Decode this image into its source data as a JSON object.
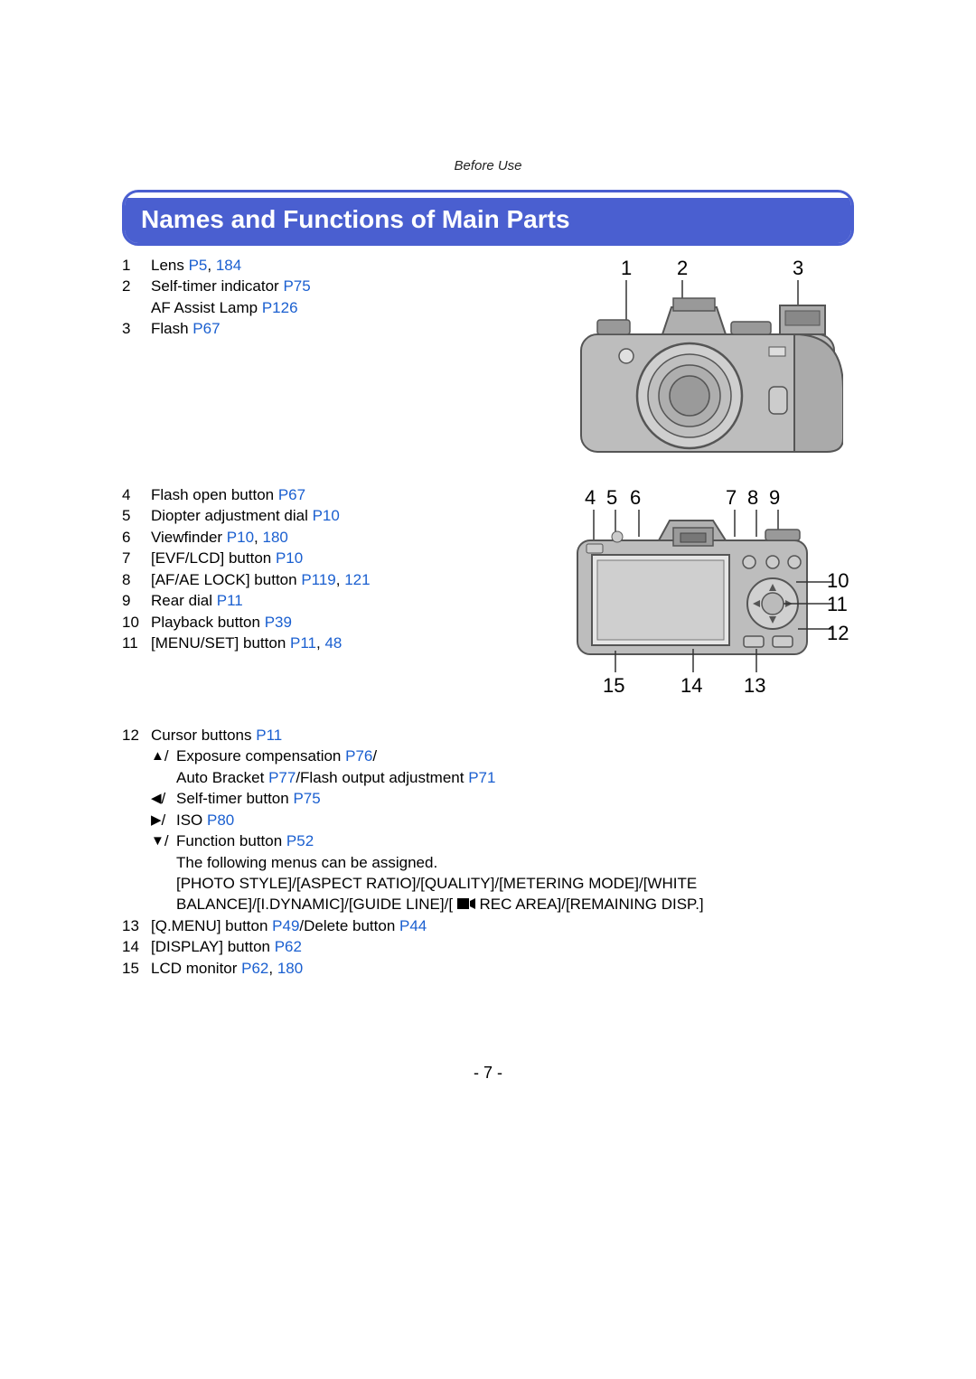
{
  "header": {
    "section": "Before Use"
  },
  "title": "Names and Functions of Main Parts",
  "colors": {
    "link": "#1a5fd0",
    "title_bg": "#4a5fd0",
    "title_fg": "#ffffff",
    "text": "#000000",
    "diagram_stroke": "#555555",
    "diagram_fill": "#b8b8b8"
  },
  "block1": {
    "items": [
      {
        "n": "1",
        "label": "Lens ",
        "refs": [
          "P5",
          ", ",
          "184"
        ]
      },
      {
        "n": "2",
        "label": "Self-timer indicator ",
        "refs": [
          "P75"
        ],
        "sub": {
          "label": "AF Assist Lamp ",
          "refs": [
            "P126"
          ]
        }
      },
      {
        "n": "3",
        "label": "Flash ",
        "refs": [
          "P67"
        ]
      }
    ]
  },
  "block2": {
    "items": [
      {
        "n": "4",
        "label": "Flash open button ",
        "refs": [
          "P67"
        ]
      },
      {
        "n": "5",
        "label": "Diopter adjustment dial ",
        "refs": [
          "P10"
        ]
      },
      {
        "n": "6",
        "label": "Viewfinder ",
        "refs": [
          "P10",
          ", ",
          "180"
        ]
      },
      {
        "n": "7",
        "label": "[EVF/LCD] button ",
        "refs": [
          "P10"
        ]
      },
      {
        "n": "8",
        "label": "[AF/AE LOCK] button ",
        "refs": [
          "P119",
          ", ",
          "121"
        ]
      },
      {
        "n": "9",
        "label": "Rear dial ",
        "refs": [
          "P11"
        ]
      },
      {
        "n": "10",
        "label": "Playback button ",
        "refs": [
          "P39"
        ]
      },
      {
        "n": "11",
        "label": "[MENU/SET] button ",
        "refs": [
          "P11",
          ", ",
          "48"
        ]
      }
    ]
  },
  "block3": {
    "n": "12",
    "label": "Cursor buttons ",
    "refs": [
      "P11"
    ],
    "subs": [
      {
        "icon": "up",
        "parts": [
          "Exposure compensation ",
          {
            "link": "P76"
          },
          "/",
          "\nAuto Bracket ",
          {
            "link": "P77"
          },
          "/Flash output adjustment ",
          {
            "link": "P71"
          }
        ]
      },
      {
        "icon": "left",
        "parts": [
          "Self-timer button ",
          {
            "link": "P75"
          }
        ]
      },
      {
        "icon": "right",
        "parts": [
          "ISO ",
          {
            "link": "P80"
          }
        ]
      },
      {
        "icon": "down",
        "parts": [
          "Function button ",
          {
            "link": "P52"
          },
          "\nThe following menus can be assigned.\n[PHOTO STYLE]/[ASPECT RATIO]/[QUALITY]/[METERING MODE]/[WHITE BALANCE]/[I.DYNAMIC]/[GUIDE LINE]/[ ",
          {
            "icon": "rec"
          },
          " REC AREA]/[REMAINING DISP.]"
        ]
      }
    ]
  },
  "block4": {
    "items": [
      {
        "n": "13",
        "label_parts": [
          "[Q.MENU] button ",
          {
            "link": "P49"
          },
          "/Delete button ",
          {
            "link": "P44"
          }
        ]
      },
      {
        "n": "14",
        "label": "[DISPLAY] button ",
        "refs": [
          "P62"
        ]
      },
      {
        "n": "15",
        "label": "LCD monitor ",
        "refs": [
          "P62",
          ", ",
          "180"
        ]
      }
    ]
  },
  "diagramA": {
    "topLabels": [
      "1",
      "2",
      "3"
    ],
    "topPositions": [
      60,
      122,
      250
    ]
  },
  "diagramB": {
    "midLabels": [
      "4",
      "5",
      "6",
      "7",
      "8",
      "9"
    ],
    "midPositions": [
      20,
      44,
      70,
      176,
      200,
      224
    ],
    "rightLabels": [
      "10",
      "11",
      "12"
    ],
    "rightYs": [
      76,
      102,
      134
    ],
    "bottomLabels": [
      "15",
      "14",
      "13"
    ],
    "bottomPositions": [
      44,
      130,
      200
    ]
  },
  "pageNumber": "- 7 -",
  "fonts": {
    "body_size_pt": 13,
    "title_size_pt": 21,
    "diagram_label_pt": 16
  }
}
